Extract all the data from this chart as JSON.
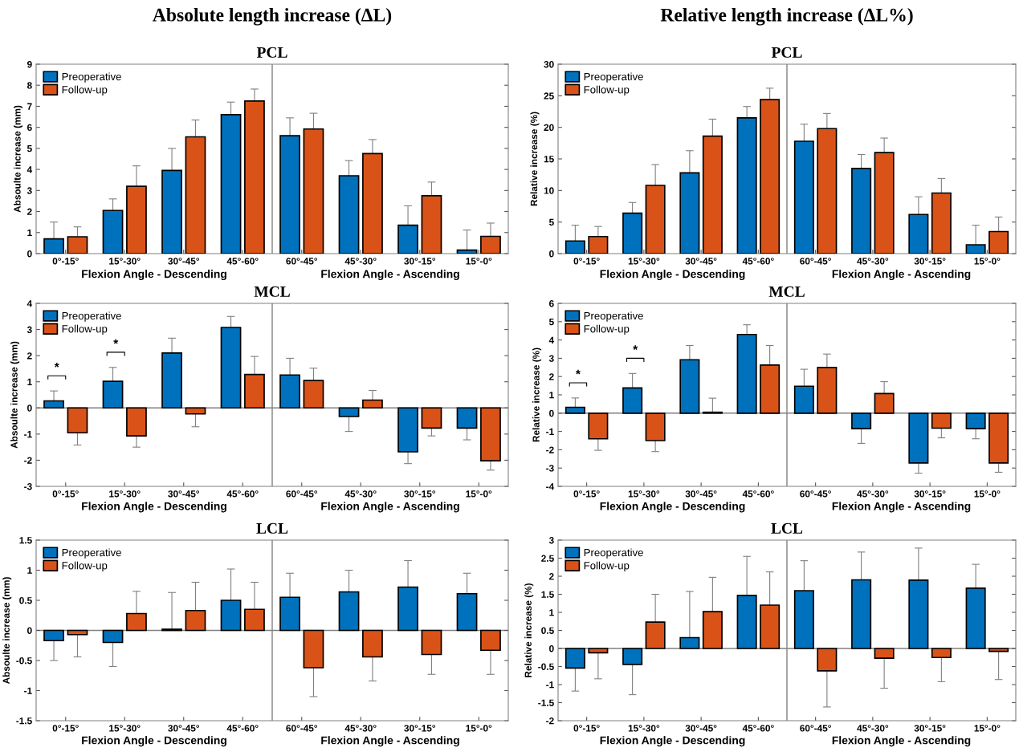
{
  "chart_data": [
    {
      "type": "bar",
      "title": "Absolute length increase (ΔL)",
      "subtitle": "PCL",
      "ylabel": "Absoulte increase (mm)",
      "xlabel": "Flexion Angle - Descending",
      "annotations": [
        "Flexion Angle - Ascending"
      ],
      "categories": [
        "0°-15°",
        "15°-30°",
        "30°-45°",
        "45°-60°",
        "60°-45°",
        "45°-30°",
        "30°-15°",
        "15°-0°"
      ],
      "series": [
        {
          "name": "Preoperative",
          "color": "#0072bd",
          "values": [
            0.7,
            2.05,
            3.95,
            6.6,
            5.6,
            3.7,
            1.35,
            0.17
          ],
          "errors": [
            0.8,
            0.55,
            1.05,
            0.6,
            0.85,
            0.72,
            0.92,
            0.95
          ]
        },
        {
          "name": "Follow-up",
          "color": "#d95319",
          "values": [
            0.8,
            3.2,
            5.55,
            7.25,
            5.92,
            4.75,
            2.75,
            0.82
          ],
          "errors": [
            0.47,
            0.97,
            0.8,
            0.57,
            0.75,
            0.67,
            0.65,
            0.63
          ]
        }
      ],
      "ylim": [
        0,
        9
      ],
      "yticks": [
        0,
        1,
        2,
        3,
        4,
        5,
        6,
        7,
        8,
        9
      ],
      "legend": "top left",
      "grid": false
    },
    {
      "type": "bar",
      "title": "Relative length increase (ΔL%)",
      "subtitle": "PCL",
      "ylabel": "Relative increase (%)",
      "xlabel": "Flexion Angle - Descending",
      "annotations": [
        "Flexion Angle - Ascending"
      ],
      "categories": [
        "0°-15°",
        "15°-30°",
        "30°-45°",
        "45°-60°",
        "60°-45°",
        "45°-30°",
        "30°-15°",
        "15°-0°"
      ],
      "series": [
        {
          "name": "Preoperative",
          "color": "#0072bd",
          "values": [
            2.0,
            6.4,
            12.8,
            21.5,
            17.8,
            13.5,
            6.2,
            1.4
          ],
          "errors": [
            2.5,
            1.7,
            3.5,
            1.8,
            2.7,
            2.2,
            2.8,
            3.1
          ]
        },
        {
          "name": "Follow-up",
          "color": "#d95319",
          "values": [
            2.7,
            10.8,
            18.6,
            24.4,
            19.8,
            16.0,
            9.6,
            3.5
          ],
          "errors": [
            1.6,
            3.3,
            2.7,
            1.8,
            2.4,
            2.3,
            2.3,
            2.3
          ]
        }
      ],
      "ylim": [
        0,
        30
      ],
      "yticks": [
        0,
        5,
        10,
        15,
        20,
        25,
        30
      ],
      "legend": "top left",
      "grid": false
    },
    {
      "type": "bar",
      "title": "MCL",
      "ylabel": "Absoulte increase (mm)",
      "xlabel": "Flexion Angle - Descending",
      "annotations": [
        "Flexion Angle - Ascending",
        "*",
        "*"
      ],
      "categories": [
        "0°-15°",
        "15°-30°",
        "30°-45°",
        "45°-60°",
        "60°-45°",
        "45°-30°",
        "30°-15°",
        "15°-0°"
      ],
      "series": [
        {
          "name": "Preoperative",
          "color": "#0072bd",
          "values": [
            0.27,
            1.02,
            2.1,
            3.08,
            1.26,
            -0.33,
            -1.68,
            -0.77
          ],
          "errors": [
            0.38,
            0.53,
            0.57,
            0.42,
            0.64,
            0.57,
            0.45,
            0.45
          ]
        },
        {
          "name": "Follow-up",
          "color": "#d95319",
          "values": [
            -0.95,
            -1.07,
            -0.23,
            1.28,
            1.05,
            0.3,
            -0.77,
            -2.02
          ],
          "errors": [
            0.47,
            0.43,
            0.49,
            0.69,
            0.47,
            0.37,
            0.3,
            0.36
          ]
        }
      ],
      "ylim": [
        -3,
        4
      ],
      "yticks": [
        -3,
        -2,
        -1,
        0,
        1,
        2,
        3,
        4
      ],
      "ref_lines": [
        {
          "axis": "y",
          "value": 0,
          "color": "#808080"
        }
      ],
      "legend": "top left",
      "grid": false
    },
    {
      "type": "bar",
      "title": "MCL",
      "ylabel": "Relative increase (%)",
      "xlabel": "Flexion Angle - Descending",
      "annotations": [
        "Flexion Angle - Ascending",
        "*",
        "*"
      ],
      "categories": [
        "0°-15°",
        "15°-30°",
        "30°-45°",
        "45°-60°",
        "60°-45°",
        "45°-30°",
        "30°-15°",
        "15°-0°"
      ],
      "series": [
        {
          "name": "Preoperative",
          "color": "#0072bd",
          "values": [
            0.32,
            1.38,
            2.92,
            4.3,
            1.47,
            -0.85,
            -2.72,
            -0.85
          ],
          "errors": [
            0.51,
            0.79,
            0.78,
            0.53,
            0.93,
            0.8,
            0.56,
            0.55
          ]
        },
        {
          "name": "Follow-up",
          "color": "#d95319",
          "values": [
            -1.4,
            -1.5,
            0.05,
            2.63,
            2.5,
            1.07,
            -0.82,
            -2.72
          ],
          "errors": [
            0.63,
            0.6,
            0.77,
            1.07,
            0.73,
            0.65,
            0.53,
            0.51
          ]
        }
      ],
      "ylim": [
        -4,
        6
      ],
      "yticks": [
        -4,
        -3,
        -2,
        -1,
        0,
        1,
        2,
        3,
        4,
        5,
        6
      ],
      "ref_lines": [
        {
          "axis": "y",
          "value": 0,
          "color": "#808080"
        }
      ],
      "legend": "top left",
      "grid": false
    },
    {
      "type": "bar",
      "title": "LCL",
      "ylabel": "Absoulte increase (mm)",
      "xlabel": "Flexion Angle - Descending",
      "annotations": [
        "Flexion Angle - Ascending"
      ],
      "categories": [
        "0°-15°",
        "15°-30°",
        "30°-45°",
        "45°-60°",
        "60°-45°",
        "45°-30°",
        "30°-15°",
        "15°-0°"
      ],
      "series": [
        {
          "name": "Preoperative",
          "color": "#0072bd",
          "values": [
            -0.17,
            -0.2,
            0.02,
            0.5,
            0.55,
            0.64,
            0.72,
            0.61
          ],
          "errors": [
            0.33,
            0.4,
            0.61,
            0.52,
            0.4,
            0.36,
            0.44,
            0.34
          ]
        },
        {
          "name": "Follow-up",
          "color": "#d95319",
          "values": [
            -0.07,
            0.28,
            0.33,
            0.35,
            -0.62,
            -0.44,
            -0.4,
            -0.33
          ],
          "errors": [
            0.37,
            0.37,
            0.47,
            0.45,
            0.48,
            0.4,
            0.33,
            0.4
          ]
        }
      ],
      "ylim": [
        -1.5,
        1.5
      ],
      "yticks": [
        -1.5,
        -1,
        -0.5,
        0,
        0.5,
        1,
        1.5
      ],
      "ref_lines": [
        {
          "axis": "y",
          "value": 0,
          "color": "#808080"
        }
      ],
      "legend": "top left",
      "grid": false
    },
    {
      "type": "bar",
      "title": "LCL",
      "ylabel": "Relative increase (%)",
      "xlabel": "Flexion Angle - Descending",
      "annotations": [
        "Flexion Angle - Ascending"
      ],
      "categories": [
        "0°-15°",
        "15°-30°",
        "30°-45°",
        "45°-60°",
        "60°-45°",
        "45°-30°",
        "30°-15°",
        "15°-0°"
      ],
      "series": [
        {
          "name": "Preoperative",
          "color": "#0072bd",
          "values": [
            -0.54,
            -0.44,
            0.3,
            1.47,
            1.6,
            1.9,
            1.89,
            1.67
          ],
          "errors": [
            0.64,
            0.84,
            1.28,
            1.08,
            0.83,
            0.77,
            0.89,
            0.66
          ]
        },
        {
          "name": "Follow-up",
          "color": "#d95319",
          "values": [
            -0.12,
            0.73,
            1.02,
            1.2,
            -0.62,
            -0.27,
            -0.25,
            -0.08
          ],
          "errors": [
            0.72,
            0.77,
            0.95,
            0.92,
            1.0,
            0.83,
            0.67,
            0.78
          ]
        }
      ],
      "ylim": [
        -2,
        3
      ],
      "yticks": [
        -2,
        -1.5,
        -1,
        -0.5,
        0,
        0.5,
        1,
        1.5,
        2,
        2.5,
        3
      ],
      "ref_lines": [
        {
          "axis": "y",
          "value": 0,
          "color": "#808080"
        }
      ],
      "legend": "top left",
      "grid": false
    }
  ]
}
